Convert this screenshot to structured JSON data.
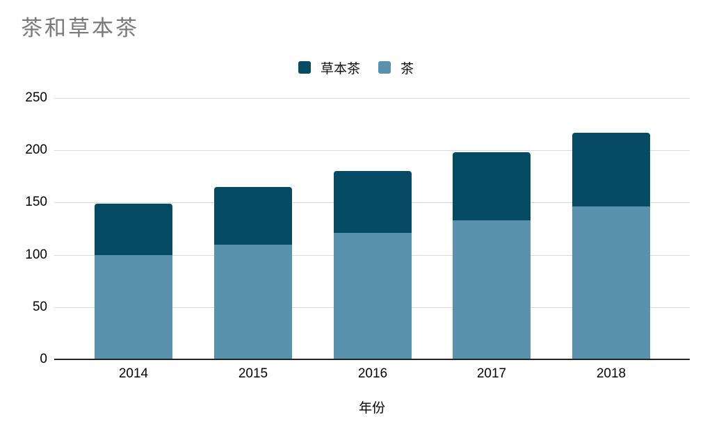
{
  "title": "茶和草本茶",
  "legend": {
    "items": [
      {
        "label": "草本茶",
        "color": "#074a63"
      },
      {
        "label": "茶",
        "color": "#5892ad"
      }
    ]
  },
  "x_axis_title": "年份",
  "colors": {
    "title_text": "#7a7a7a",
    "grid": "#d9d9d9",
    "axis_line": "#222222",
    "tick_text": "#000000",
    "herbal_tea": "#074a63",
    "tea": "#5892ad"
  },
  "chart_data": {
    "type": "bar",
    "stacked": true,
    "title": "茶和草本茶",
    "xlabel": "年份",
    "ylabel": "",
    "categories": [
      "2014",
      "2015",
      "2016",
      "2017",
      "2018"
    ],
    "series": [
      {
        "name": "茶",
        "color": "#5892ad",
        "stack_position": "bottom",
        "values": [
          100,
          110,
          121,
          133,
          146
        ]
      },
      {
        "name": "草本茶",
        "color": "#074a63",
        "stack_position": "top",
        "values": [
          49,
          55,
          59,
          65,
          71
        ]
      }
    ],
    "totals": [
      149,
      165,
      180,
      198,
      217
    ],
    "ylim": [
      0,
      250
    ],
    "yticks": [
      0,
      50,
      100,
      150,
      200,
      250
    ],
    "legend_position": "top",
    "grid": true
  }
}
